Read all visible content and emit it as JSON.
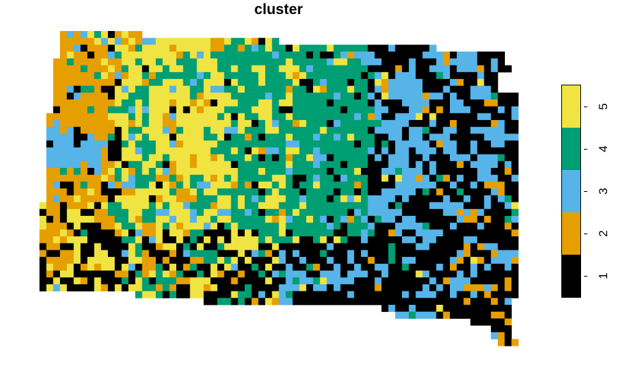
{
  "title": "cluster",
  "map": {
    "type": "categorical-raster",
    "palette": {
      "1": "#000000",
      "2": "#E69F00",
      "3": "#56B4E9",
      "4": "#009E73",
      "5": "#F0E442"
    }
  },
  "legend": {
    "items": [
      {
        "value": "1",
        "color": "#000000"
      },
      {
        "value": "2",
        "color": "#E69F00"
      },
      {
        "value": "3",
        "color": "#56B4E9"
      },
      {
        "value": "4",
        "color": "#009E73"
      },
      {
        "value": "5",
        "color": "#F0E442"
      }
    ]
  }
}
